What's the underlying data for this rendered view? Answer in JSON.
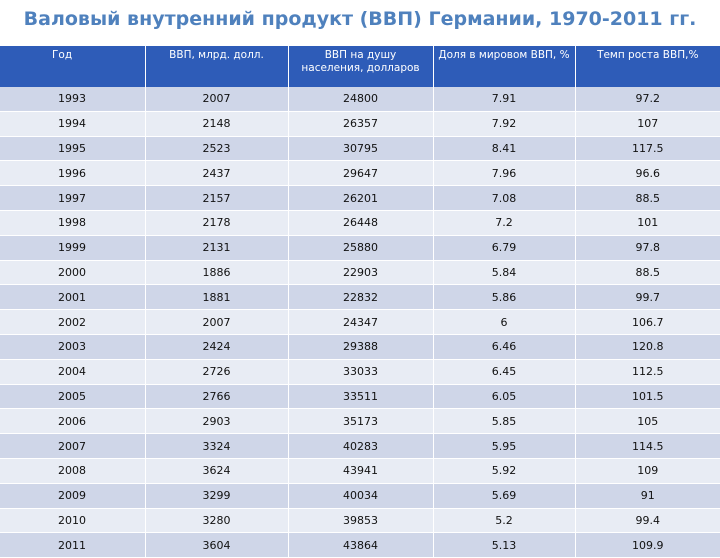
{
  "title": "Валовый внутренний продукт (ВВП) Германии, 1970-2011 гг.",
  "headers": [
    "Год",
    "ВВП, млрд. долл.",
    "ВВП на душу населения, долларов",
    "Доля в мировом ВВП, %",
    "Темп роста ВВП,%"
  ],
  "rows": [
    [
      "1993",
      "2007",
      "24800",
      "7.91",
      "97.2"
    ],
    [
      "1994",
      "2148",
      "26357",
      "7.92",
      "107"
    ],
    [
      "1995",
      "2523",
      "30795",
      "8.41",
      "117.5"
    ],
    [
      "1996",
      "2437",
      "29647",
      "7.96",
      "96.6"
    ],
    [
      "1997",
      "2157",
      "26201",
      "7.08",
      "88.5"
    ],
    [
      "1998",
      "2178",
      "26448",
      "7.2",
      "101"
    ],
    [
      "1999",
      "2131",
      "25880",
      "6.79",
      "97.8"
    ],
    [
      "2000",
      "1886",
      "22903",
      "5.84",
      "88.5"
    ],
    [
      "2001",
      "1881",
      "22832",
      "5.86",
      "99.7"
    ],
    [
      "2002",
      "2007",
      "24347",
      "6",
      "106.7"
    ],
    [
      "2003",
      "2424",
      "29388",
      "6.46",
      "120.8"
    ],
    [
      "2004",
      "2726",
      "33033",
      "6.45",
      "112.5"
    ],
    [
      "2005",
      "2766",
      "33511",
      "6.05",
      "101.5"
    ],
    [
      "2006",
      "2903",
      "35173",
      "5.85",
      "105"
    ],
    [
      "2007",
      "3324",
      "40283",
      "5.95",
      "114.5"
    ],
    [
      "2008",
      "3624",
      "43941",
      "5.92",
      "109"
    ],
    [
      "2009",
      "3299",
      "40034",
      "5.69",
      "91"
    ],
    [
      "2010",
      "3280",
      "39853",
      "5.2",
      "99.4"
    ],
    [
      "2011",
      "3604",
      "43864",
      "5.13",
      "109.9"
    ]
  ]
}
